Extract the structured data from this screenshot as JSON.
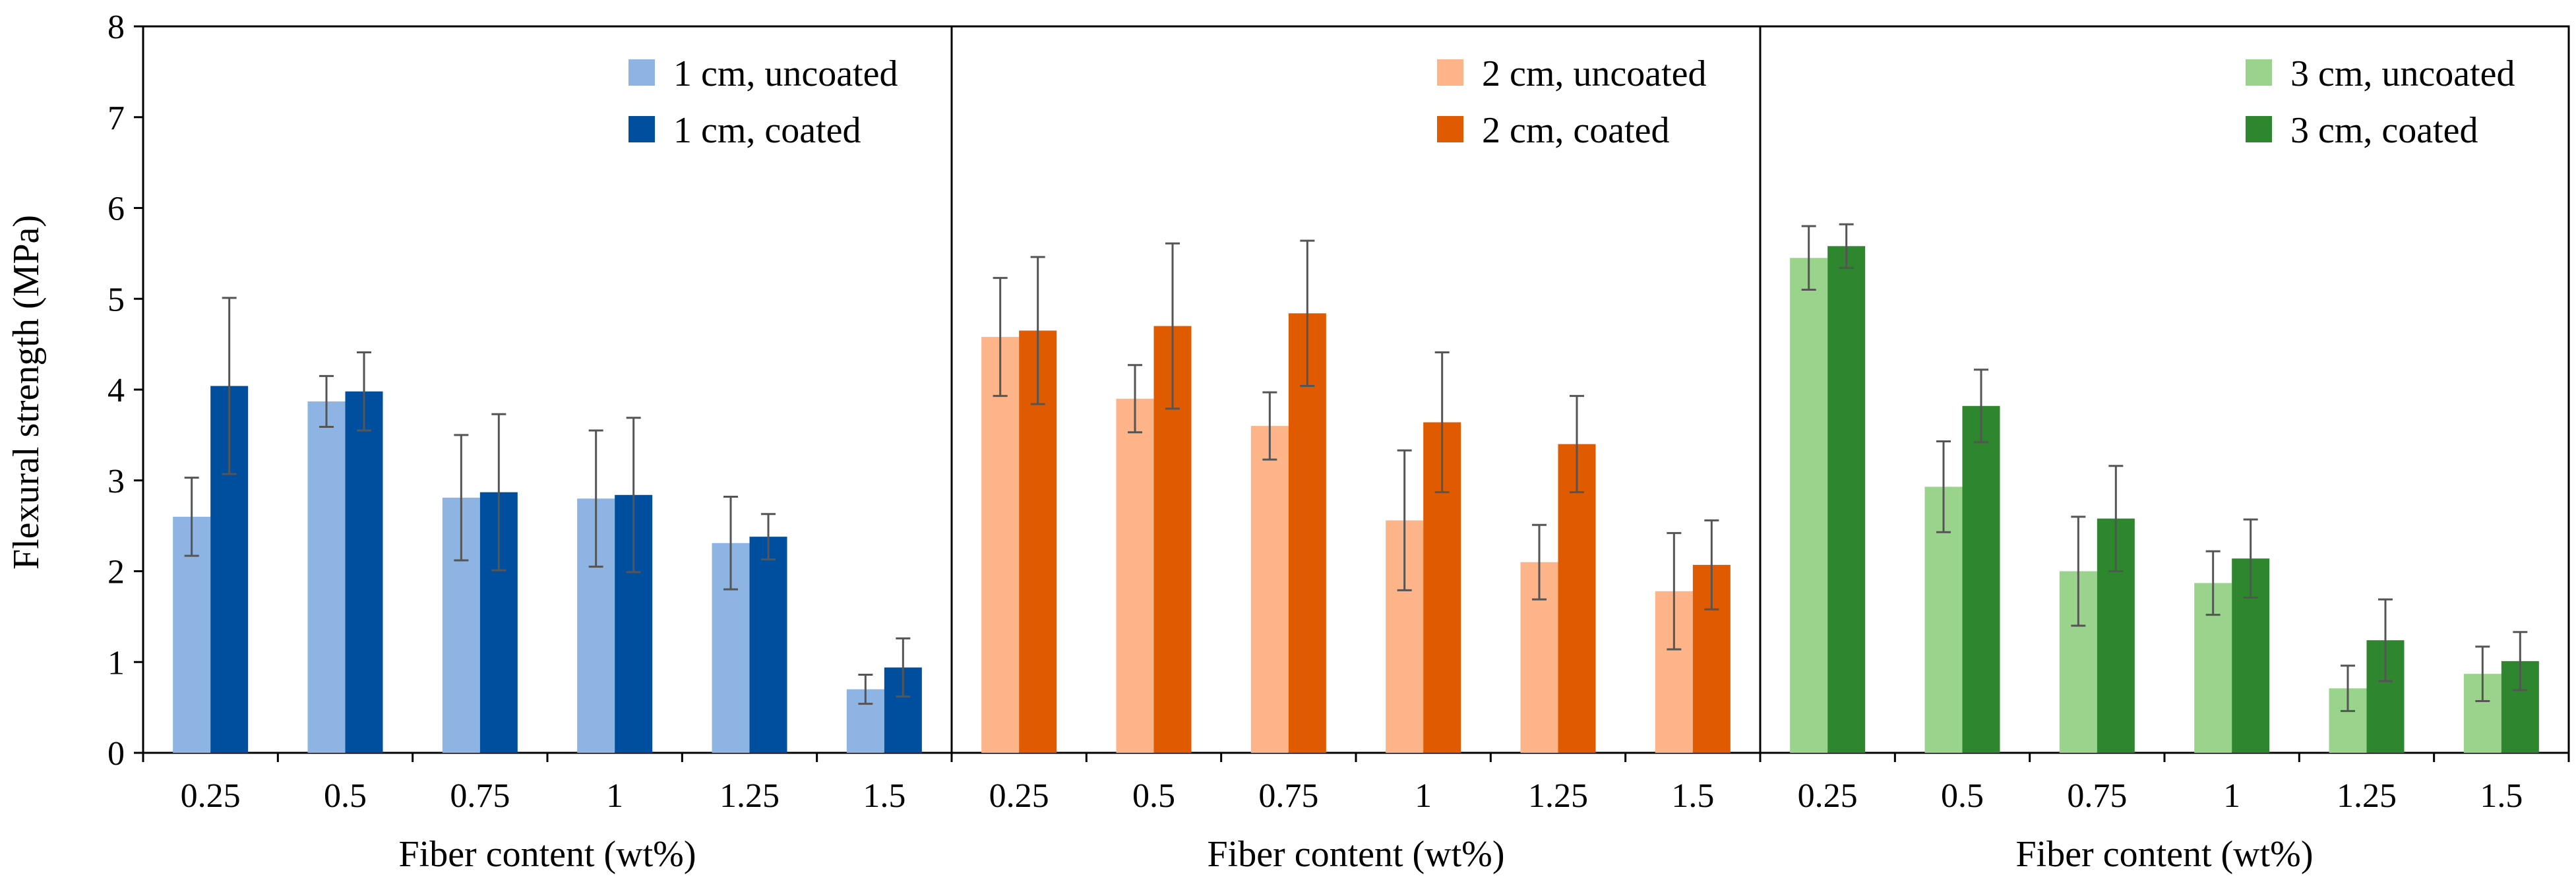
{
  "chart_data": {
    "type": "bar",
    "ylabel": "Flexural strength (MPa)",
    "ylim": [
      0,
      8
    ],
    "yticks": [
      "0",
      "1",
      "2",
      "3",
      "4",
      "5",
      "6",
      "7",
      "8"
    ],
    "grid": false,
    "legend_position": "top-right",
    "panels": [
      {
        "xlabel": "Fiber content (wt%)",
        "categories": [
          "0.25",
          "0.5",
          "0.75",
          "1",
          "1.25",
          "1.5"
        ],
        "series": [
          {
            "name": "1 cm, uncoated",
            "color": "#8EB4E3",
            "values": [
              2.6,
              3.87,
              2.81,
              2.8,
              2.31,
              0.7
            ],
            "errors": [
              0.43,
              0.28,
              0.69,
              0.75,
              0.51,
              0.16
            ]
          },
          {
            "name": "1 cm, coated",
            "color": "#004F9E",
            "values": [
              4.04,
              3.98,
              2.87,
              2.84,
              2.38,
              0.94
            ],
            "errors": [
              0.97,
              0.43,
              0.86,
              0.85,
              0.25,
              0.32
            ]
          }
        ]
      },
      {
        "xlabel": "Fiber content (wt%)",
        "categories": [
          "0.25",
          "0.5",
          "0.75",
          "1",
          "1.25",
          "1.5"
        ],
        "series": [
          {
            "name": "2 cm, uncoated",
            "color": "#FCB488",
            "values": [
              4.58,
              3.9,
              3.6,
              2.56,
              2.1,
              1.78
            ],
            "errors": [
              0.65,
              0.37,
              0.37,
              0.77,
              0.41,
              0.64
            ]
          },
          {
            "name": "2 cm, coated",
            "color": "#E05A00",
            "values": [
              4.65,
              4.7,
              4.84,
              3.64,
              3.4,
              2.07
            ],
            "errors": [
              0.81,
              0.91,
              0.8,
              0.77,
              0.53,
              0.49
            ]
          }
        ]
      },
      {
        "xlabel": "Fiber content (wt%)",
        "categories": [
          "0.25",
          "0.5",
          "0.75",
          "1",
          "1.25",
          "1.5"
        ],
        "series": [
          {
            "name": "3 cm, uncoated",
            "color": "#9AD48C",
            "values": [
              5.45,
              2.93,
              2.0,
              1.87,
              0.71,
              0.87
            ],
            "errors": [
              0.35,
              0.5,
              0.6,
              0.35,
              0.25,
              0.3
            ]
          },
          {
            "name": "3 cm, coated",
            "color": "#2E862E",
            "values": [
              5.58,
              3.82,
              2.58,
              2.14,
              1.24,
              1.01
            ],
            "errors": [
              0.24,
              0.4,
              0.58,
              0.43,
              0.45,
              0.32
            ]
          }
        ]
      }
    ]
  }
}
